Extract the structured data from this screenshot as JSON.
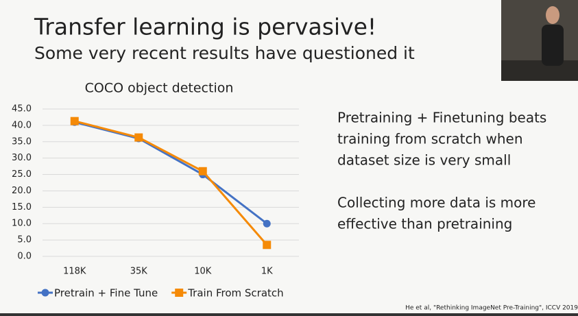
{
  "slide": {
    "title": "Transfer learning is pervasive!",
    "subtitle": "Some very recent results have questioned it",
    "bullets": [
      [
        "Pretraining + Finetuning beats",
        "training from scratch when",
        "dataset size is very small"
      ],
      [
        "Collecting more data is more",
        "effective than pretraining"
      ]
    ],
    "citation": "He et al, \"Rethinking ImageNet Pre-Training\", ICCV 2019"
  },
  "chart_data": {
    "type": "line",
    "title": "COCO object detection",
    "categories": [
      "118K",
      "35K",
      "10K",
      "1K"
    ],
    "series": [
      {
        "name": "Pretrain + Fine Tune",
        "color": "#4472c4",
        "marker": "circle",
        "values": [
          41.0,
          36.0,
          25.0,
          10.0
        ]
      },
      {
        "name": "Train From Scratch",
        "color": "#f58a07",
        "marker": "square",
        "values": [
          41.3,
          36.3,
          26.0,
          3.5
        ]
      }
    ],
    "ylim": [
      0,
      45
    ],
    "yticks": [
      {
        "value": 0,
        "label": "0.0"
      },
      {
        "value": 5,
        "label": "5.0"
      },
      {
        "value": 10,
        "label": "10.0"
      },
      {
        "value": 15,
        "label": "15.0"
      },
      {
        "value": 20,
        "label": "20.0"
      },
      {
        "value": 25,
        "label": "25.0"
      },
      {
        "value": 30,
        "label": "30.0"
      },
      {
        "value": 35,
        "label": "35.0"
      },
      {
        "value": 40,
        "label": "40.0"
      },
      {
        "value": 45,
        "label": "45.0"
      }
    ],
    "grid": true,
    "legend": "bottom"
  }
}
